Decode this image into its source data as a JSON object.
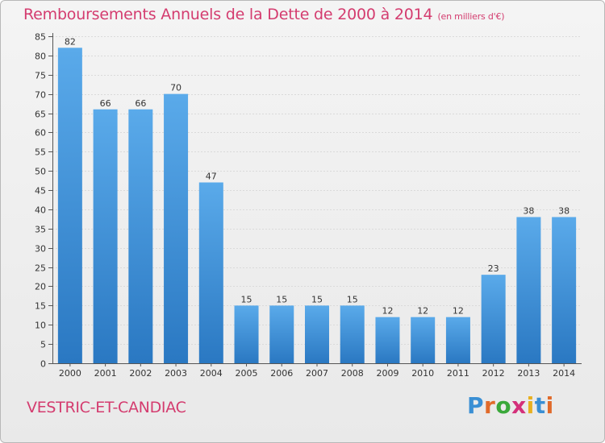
{
  "title": "Remboursements Annuels de la Dette de 2000 à 2014",
  "unit": "(en milliers d'€)",
  "town": "VESTRIC-ET-CANDIAC",
  "logo": {
    "text": "Proxiti",
    "colors": [
      "#3a8fd4",
      "#e06a2a",
      "#3aa83a",
      "#d4307a",
      "#e8b020",
      "#3a8fd4",
      "#e06a2a"
    ]
  },
  "colors": {
    "bar_top": "#5aaaea",
    "bar_bottom": "#2a78c2",
    "title": "#d43c6f"
  },
  "chart_data": {
    "type": "bar",
    "title": "Remboursements Annuels de la Dette de 2000 à 2014",
    "categories": [
      "2000",
      "2001",
      "2002",
      "2003",
      "2004",
      "2005",
      "2006",
      "2007",
      "2008",
      "2009",
      "2010",
      "2011",
      "2012",
      "2013",
      "2014"
    ],
    "values": [
      82,
      66,
      66,
      70,
      47,
      15,
      15,
      15,
      15,
      12,
      12,
      12,
      23,
      38,
      38
    ],
    "ylim": [
      0,
      85
    ],
    "yticks": [
      0,
      5,
      10,
      15,
      20,
      25,
      30,
      35,
      40,
      45,
      50,
      55,
      60,
      65,
      70,
      75,
      80,
      85
    ],
    "grid": true,
    "xlabel": "",
    "ylabel": ""
  }
}
